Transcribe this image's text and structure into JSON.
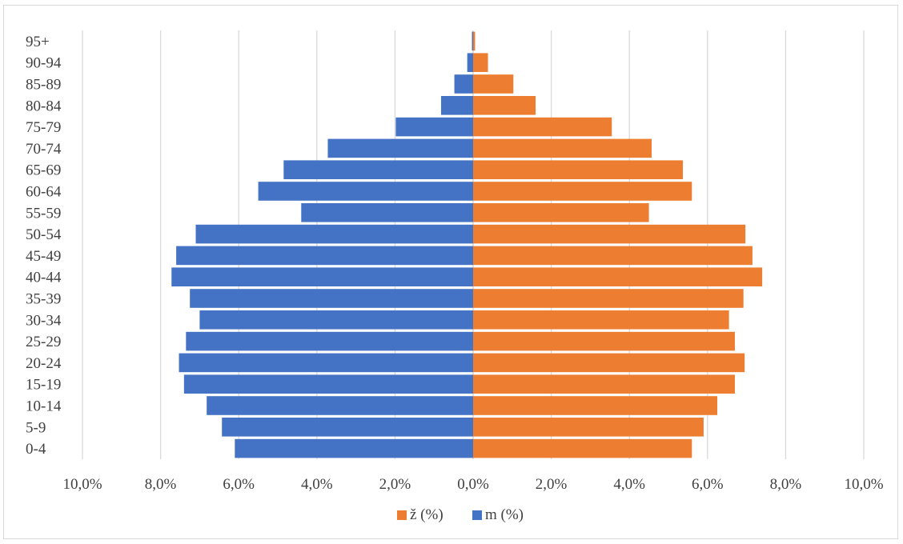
{
  "chart_data": {
    "type": "bar",
    "orientation": "horizontal",
    "categories": [
      "0-4",
      "5-9",
      "10-14",
      "15-19",
      "20-24",
      "25-29",
      "30-34",
      "35-39",
      "40-44",
      "45-49",
      "50-54",
      "55-59",
      "60-64",
      "65-69",
      "70-74",
      "75-79",
      "80-84",
      "85-89",
      "90-94",
      "95+"
    ],
    "series": [
      {
        "name": "ž (%)",
        "color": "#ed7d31",
        "side": "right",
        "values": [
          5.6,
          5.9,
          6.25,
          6.7,
          6.95,
          6.7,
          6.55,
          6.92,
          7.4,
          7.15,
          6.97,
          4.5,
          5.6,
          5.37,
          4.57,
          3.55,
          1.6,
          1.03,
          0.38,
          0.05
        ]
      },
      {
        "name": "m (%)",
        "color": "#4472c4",
        "side": "left",
        "values": [
          6.1,
          6.43,
          6.82,
          7.4,
          7.53,
          7.35,
          7.0,
          7.25,
          7.72,
          7.6,
          7.1,
          4.4,
          5.5,
          4.85,
          3.72,
          1.98,
          0.82,
          0.48,
          0.15,
          0.03
        ]
      }
    ],
    "xlim": [
      -10,
      10
    ],
    "x_ticks": [
      "10,0%",
      "8,0%",
      "6,0%",
      "4,0%",
      "2,0%",
      "0,0%",
      "2,0%",
      "4,0%",
      "6,0%",
      "8,0%",
      "10,0%"
    ],
    "grid": true,
    "legend_position": "bottom",
    "legend": [
      {
        "label": "ž (%)",
        "color": "#ed7d31"
      },
      {
        "label": "m (%)",
        "color": "#4472c4"
      }
    ],
    "title": "",
    "xlabel": "",
    "ylabel": ""
  }
}
